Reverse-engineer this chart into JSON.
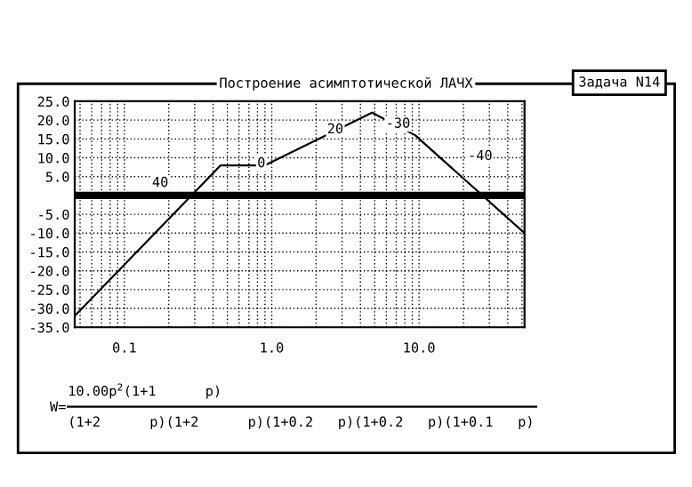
{
  "chart_data": {
    "type": "line",
    "title": "Построение асимптотической ЛАЧХ",
    "x": [
      0.046,
      0.45,
      0.9,
      4.8,
      9.4,
      52
    ],
    "series": [
      {
        "color": "#000000",
        "values": [
          -32,
          8,
          8,
          22,
          16,
          -10
        ]
      }
    ],
    "log": "x",
    "xlim": [
      0.046,
      52
    ],
    "ylim": [
      -35,
      25
    ],
    "xticks": [
      {
        "value": 0.1,
        "label": "0.1"
      },
      {
        "value": 1,
        "label": "1.0"
      },
      {
        "value": 10,
        "label": "10.0"
      }
    ],
    "yticks": [
      {
        "value": 25,
        "label": "25.0"
      },
      {
        "value": 20,
        "label": "20.0"
      },
      {
        "value": 15,
        "label": "15.0"
      },
      {
        "value": 10,
        "label": "10.0"
      },
      {
        "value": 5,
        "label": "5.0"
      },
      {
        "value": -5,
        "label": "-5.0"
      },
      {
        "value": -10,
        "label": "-10.0"
      },
      {
        "value": -15,
        "label": "-15.0"
      },
      {
        "value": -20,
        "label": "-20.0"
      },
      {
        "value": -25,
        "label": "-25.0"
      },
      {
        "value": -30,
        "label": "-30.0"
      },
      {
        "value": -35,
        "label": "-35.0"
      }
    ],
    "grid": true,
    "marker": "none",
    "line_style": "solid",
    "ref_lines": [
      {
        "axis": "y",
        "value": 0,
        "color": "#000000"
      }
    ],
    "annotations": [
      {
        "text": "40",
        "x": 0.175,
        "y": 3.3
      },
      {
        "text": "0",
        "x": 0.85,
        "y": 8.5
      },
      {
        "text": "20",
        "x": 2.7,
        "y": 17.5
      },
      {
        "text": "-30",
        "x": 7.2,
        "y": 19
      },
      "-40",
      "Задача N14",
      "W=",
      "10.00p$^{2}$(1+1      p)",
      "(1+2      p)(1+2      p)(1+0.2   p)(1+0.2   p)(1+0.1   p)"
    ]
  }
}
